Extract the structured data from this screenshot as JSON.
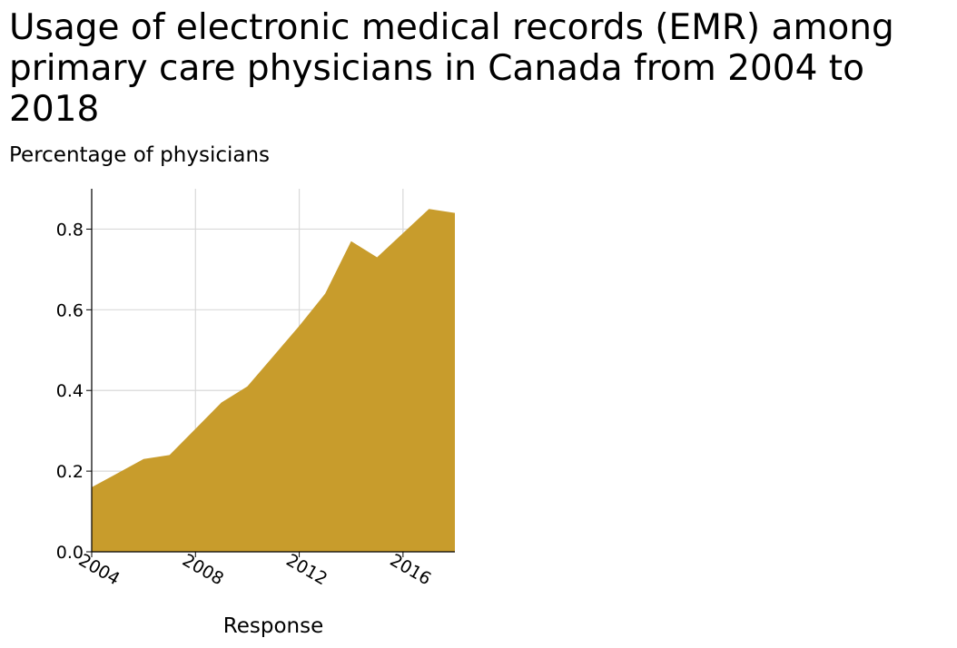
{
  "chart_data": {
    "type": "area",
    "title": "Usage of electronic medical records (EMR) among primary care physicians in Canada from 2004 to 2018",
    "ylabel": "Percentage of physicians",
    "xlabel": "Response",
    "x": [
      2004,
      2005,
      2006,
      2007,
      2008,
      2009,
      2010,
      2011,
      2012,
      2013,
      2014,
      2015,
      2016,
      2017,
      2018
    ],
    "values": [
      0.16,
      0.195,
      0.23,
      0.24,
      0.305,
      0.37,
      0.41,
      0.485,
      0.56,
      0.64,
      0.77,
      0.73,
      0.79,
      0.85,
      0.84
    ],
    "xlim": [
      2004,
      2018
    ],
    "ylim": [
      0,
      0.9
    ],
    "xticks": [
      2004,
      2008,
      2012,
      2016
    ],
    "yticks": [
      "0.0",
      "0.2",
      "0.4",
      "0.6",
      "0.8"
    ],
    "grid": true,
    "fill_color": "#c89c2c",
    "grid_color": "#d9d9d9"
  }
}
